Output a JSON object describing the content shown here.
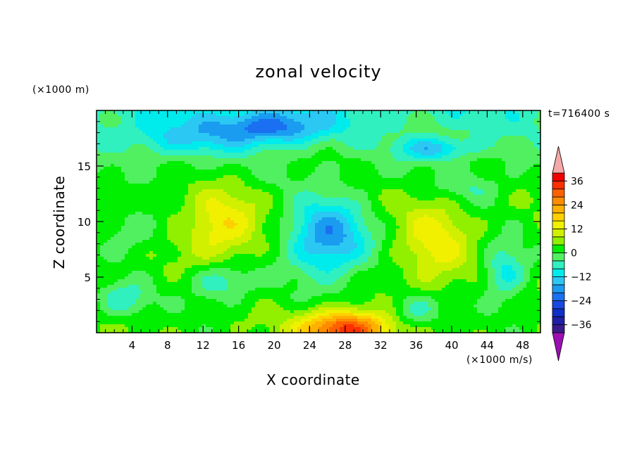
{
  "chart_data": {
    "type": "heatmap",
    "title": "zonal velocity",
    "xlabel": "X coordinate",
    "ylabel": "Z coordinate",
    "x_unit": "(×1000 m/s)",
    "y_unit": "(×1000 m)",
    "time_label": "t=716400 s",
    "xlim": [
      0,
      50
    ],
    "ylim": [
      0,
      20
    ],
    "x_ticks": [
      4,
      8,
      12,
      16,
      20,
      24,
      28,
      32,
      36,
      40,
      44,
      48
    ],
    "y_ticks": [
      5,
      10,
      15
    ],
    "colorbar": {
      "levels": [
        -40,
        -36,
        -32,
        -28,
        -24,
        -20,
        -16,
        -12,
        -8,
        -4,
        0,
        4,
        8,
        12,
        16,
        20,
        24,
        28,
        32,
        36,
        40
      ],
      "tick_labels": [
        36,
        24,
        12,
        0,
        -12,
        -24,
        -36
      ],
      "colors": [
        "#3a1a8c",
        "#2020a6",
        "#1030c8",
        "#1848e0",
        "#1a70f0",
        "#1a9cf0",
        "#2ac8f2",
        "#00ecec",
        "#30f0c0",
        "#50f060",
        "#00f000",
        "#90f000",
        "#d0f000",
        "#f0f000",
        "#ffd000",
        "#ffb000",
        "#ff8c00",
        "#ff6000",
        "#ff3000",
        "#f00000"
      ],
      "under_color": "#9a10b0",
      "over_color": "#f4a8a8"
    },
    "features": [
      {
        "x": 26,
        "y": 8.5,
        "amp": -22,
        "sx": 4.5,
        "sy": 3.6
      },
      {
        "x": 28,
        "y": 0.3,
        "amp": 32,
        "sx": 5.0,
        "sy": 1.6
      },
      {
        "x": 14,
        "y": 9.5,
        "amp": 13,
        "sx": 4.0,
        "sy": 3.2
      },
      {
        "x": 38,
        "y": 8.0,
        "amp": 11,
        "sx": 3.8,
        "sy": 4.0
      },
      {
        "x": 46,
        "y": 5.5,
        "amp": -13,
        "sx": 2.4,
        "sy": 2.5
      },
      {
        "x": 14,
        "y": 4.5,
        "amp": -11,
        "sx": 3.5,
        "sy": 1.8
      },
      {
        "x": 3,
        "y": 3.0,
        "amp": -10,
        "sx": 3.0,
        "sy": 1.6
      },
      {
        "x": 20,
        "y": 18.5,
        "amp": -18,
        "sx": 6.0,
        "sy": 1.5
      },
      {
        "x": 38,
        "y": 16.5,
        "amp": -14,
        "sx": 4.0,
        "sy": 1.0
      },
      {
        "x": 10,
        "y": 17.5,
        "amp": -10,
        "sx": 7.0,
        "sy": 1.8
      },
      {
        "x": 36,
        "y": 2.0,
        "amp": -10,
        "sx": 3.0,
        "sy": 1.6
      },
      {
        "x": 4,
        "y": 9.0,
        "amp": -7,
        "sx": 3.0,
        "sy": 2.0
      },
      {
        "x": 42,
        "y": 13.0,
        "amp": -6,
        "sx": 4.0,
        "sy": 1.5
      }
    ]
  }
}
